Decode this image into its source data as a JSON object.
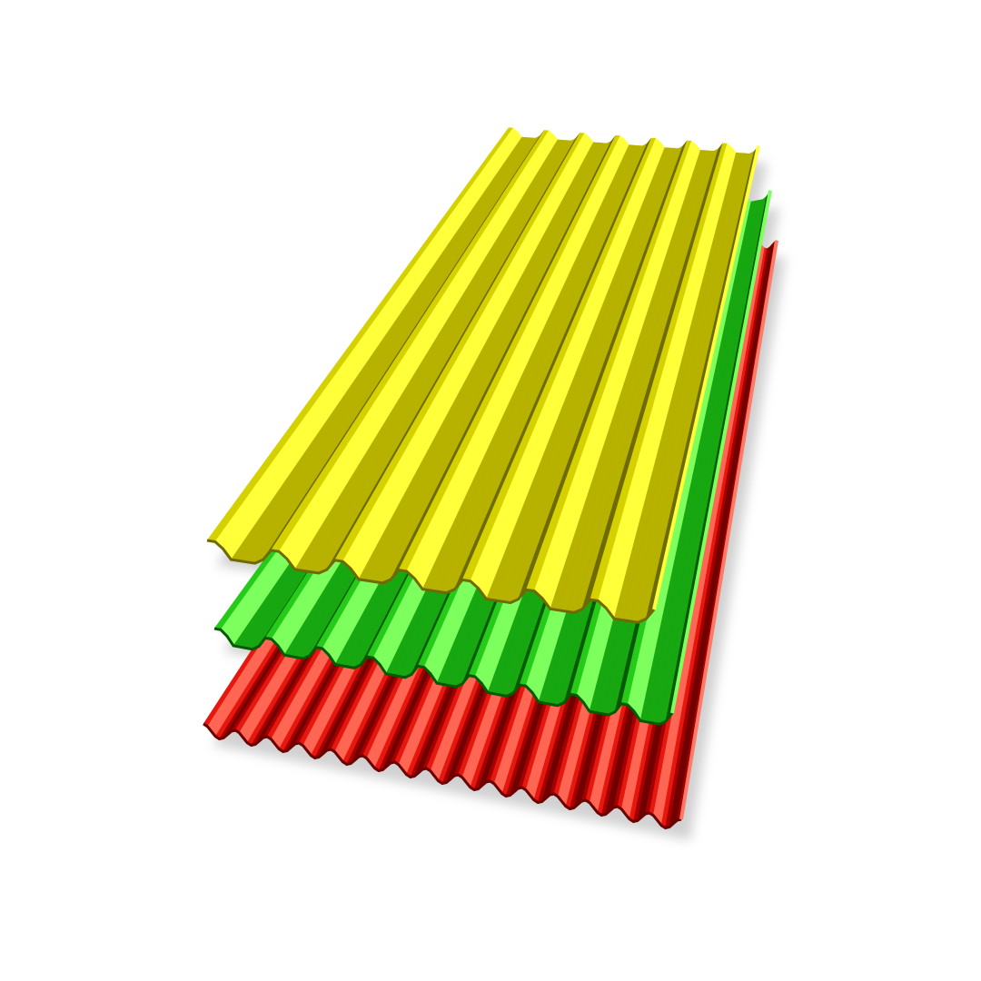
{
  "scene": {
    "subject": "corrugated-roofing-sheets",
    "background": "#ffffff",
    "sheets": [
      {
        "id": "red",
        "name": "red-sheet",
        "profile": "wave",
        "ribs": 15,
        "colors": {
          "dark": "#6a0000",
          "mid": "#c80000",
          "light": "#ff2a1a",
          "highlight": "#ff7a66"
        }
      },
      {
        "id": "green",
        "name": "green-sheet",
        "profile": "trapezoid",
        "ribs": 9,
        "colors": {
          "dark": "#045a00",
          "mid": "#15a310",
          "light": "#2fe01e",
          "highlight": "#7dff5e"
        }
      },
      {
        "id": "yellow",
        "name": "yellow-sheet",
        "profile": "trapezoid",
        "ribs": 7,
        "colors": {
          "dark": "#6e6a00",
          "mid": "#b3ad00",
          "light": "#e8e400",
          "highlight": "#ffff3a"
        }
      }
    ]
  }
}
